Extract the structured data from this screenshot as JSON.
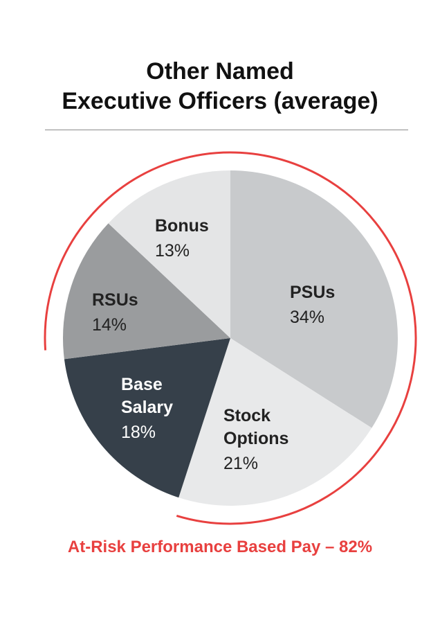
{
  "chart_data": {
    "type": "pie",
    "title_lines": [
      "Other Named",
      "Executive Officers (average)"
    ],
    "categories": [
      "PSUs",
      "Stock Options",
      "Base Salary",
      "RSUs",
      "Bonus"
    ],
    "label_lines": [
      [
        "PSUs"
      ],
      [
        "Stock",
        "Options"
      ],
      [
        "Base",
        "Salary"
      ],
      [
        "RSUs"
      ],
      [
        "Bonus"
      ]
    ],
    "values": [
      34,
      21,
      18,
      14,
      13
    ],
    "value_labels": [
      "34%",
      "21%",
      "18%",
      "14%",
      "13%"
    ],
    "colors": [
      "#c8cacc",
      "#e8e9ea",
      "#36404a",
      "#9a9c9e",
      "#e4e5e6"
    ],
    "label_colors": [
      "#222222",
      "#222222",
      "#ffffff",
      "#222222",
      "#222222"
    ],
    "start": "12 o'clock, clockwise",
    "annotation": {
      "text": "At-Risk Performance Based Pay – 82%",
      "color": "#e8403f",
      "categories_covered": [
        "PSUs",
        "Stock Options",
        "RSUs",
        "Bonus"
      ]
    }
  }
}
